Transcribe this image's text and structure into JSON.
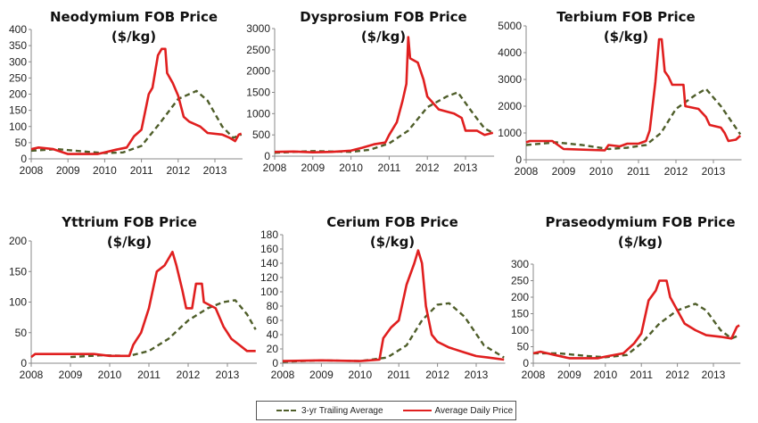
{
  "legend": {
    "trailing_label": "3-yr Trailing Average",
    "daily_label": "Average Daily Price",
    "trailing_color": "#4f5e2a",
    "daily_color": "#e01f1f"
  },
  "chart_data": [
    {
      "type": "line",
      "title": "Neodymium FOB Price",
      "subtitle": "($/kg)",
      "xlim": [
        2008,
        2013.75
      ],
      "ylim": [
        0,
        400
      ],
      "xticks": [
        2008,
        2009,
        2010,
        2011,
        2012,
        2013
      ],
      "yticks": [
        0,
        50,
        100,
        150,
        200,
        250,
        300,
        350,
        400
      ],
      "series": [
        {
          "name": "Average Daily Price",
          "x": [
            2008,
            2008.2,
            2008.6,
            2009,
            2009.8,
            2010,
            2010.3,
            2010.6,
            2010.8,
            2011,
            2011.2,
            2011.3,
            2011.45,
            2011.55,
            2011.65,
            2011.7,
            2011.85,
            2012,
            2012.15,
            2012.3,
            2012.6,
            2012.8,
            2013.2,
            2013.4,
            2013.55,
            2013.65,
            2013.72
          ],
          "y": [
            30,
            35,
            30,
            15,
            15,
            20,
            28,
            35,
            70,
            90,
            200,
            220,
            320,
            340,
            340,
            265,
            235,
            195,
            130,
            115,
            100,
            80,
            75,
            65,
            55,
            75,
            78
          ]
        },
        {
          "name": "3-yr Trailing Average",
          "x": [
            2008,
            2008.7,
            2009.5,
            2010,
            2010.5,
            2011,
            2011.5,
            2012,
            2012.5,
            2012.8,
            2013.2,
            2013.5,
            2013.72
          ],
          "y": [
            25,
            30,
            22,
            18,
            20,
            40,
            110,
            185,
            210,
            180,
            100,
            65,
            75
          ]
        }
      ]
    },
    {
      "type": "line",
      "title": "Dysprosium FOB Price",
      "subtitle": "($/kg)",
      "xlim": [
        2008,
        2013.75
      ],
      "ylim": [
        0,
        3000
      ],
      "xticks": [
        2008,
        2009,
        2010,
        2011,
        2012,
        2013
      ],
      "yticks": [
        0,
        500,
        1000,
        1500,
        2000,
        2500,
        3000
      ],
      "series": [
        {
          "name": "Average Daily Price",
          "x": [
            2008,
            2008.5,
            2009,
            2009.5,
            2010,
            2010.3,
            2010.6,
            2010.9,
            2011,
            2011.2,
            2011.35,
            2011.45,
            2011.5,
            2011.55,
            2011.75,
            2011.9,
            2012,
            2012.3,
            2012.7,
            2012.9,
            2013,
            2013.3,
            2013.5,
            2013.72
          ],
          "y": [
            100,
            110,
            90,
            100,
            130,
            200,
            280,
            320,
            500,
            800,
            1300,
            1700,
            2800,
            2300,
            2200,
            1800,
            1400,
            1100,
            1000,
            900,
            600,
            600,
            500,
            550
          ]
        },
        {
          "name": "3-yr Trailing Average",
          "x": [
            2008,
            2009,
            2010,
            2010.5,
            2011,
            2011.5,
            2012,
            2012.5,
            2012.8,
            2013.2,
            2013.5,
            2013.72
          ],
          "y": [
            80,
            120,
            100,
            150,
            300,
            600,
            1150,
            1400,
            1500,
            1000,
            650,
            550
          ]
        }
      ]
    },
    {
      "type": "line",
      "title": "Terbium FOB Price",
      "subtitle": "($/kg)",
      "xlim": [
        2008,
        2013.75
      ],
      "ylim": [
        0,
        5000
      ],
      "xticks": [
        2008,
        2009,
        2010,
        2011,
        2012,
        2013
      ],
      "yticks": [
        0,
        1000,
        2000,
        3000,
        4000,
        5000
      ],
      "series": [
        {
          "name": "Average Daily Price",
          "x": [
            2008,
            2008.1,
            2008.7,
            2009,
            2010.1,
            2010.2,
            2010.5,
            2010.7,
            2011,
            2011.2,
            2011.3,
            2011.45,
            2011.55,
            2011.62,
            2011.7,
            2011.8,
            2011.9,
            2012.2,
            2012.25,
            2012.6,
            2012.8,
            2012.9,
            2013.2,
            2013.3,
            2013.4,
            2013.6,
            2013.72
          ],
          "y": [
            650,
            700,
            700,
            400,
            350,
            550,
            500,
            600,
            600,
            700,
            1100,
            2900,
            4500,
            4500,
            3300,
            3100,
            2800,
            2800,
            2000,
            1900,
            1600,
            1300,
            1200,
            1000,
            700,
            750,
            900
          ]
        },
        {
          "name": "3-yr Trailing Average",
          "x": [
            2008,
            2008.8,
            2009.5,
            2010.2,
            2010.7,
            2011.2,
            2011.6,
            2012,
            2012.5,
            2012.8,
            2013.2,
            2013.72
          ],
          "y": [
            550,
            650,
            550,
            400,
            450,
            550,
            1000,
            1900,
            2400,
            2650,
            2000,
            950
          ]
        }
      ]
    },
    {
      "type": "line",
      "title": "Yttrium FOB Price",
      "subtitle": "($/kg)",
      "xlim": [
        2008,
        2013.75
      ],
      "ylim": [
        0,
        200
      ],
      "xticks": [
        2008,
        2009,
        2010,
        2011,
        2012,
        2013
      ],
      "yticks": [
        0,
        50,
        100,
        150,
        200
      ],
      "series": [
        {
          "name": "Average Daily Price",
          "x": [
            2008,
            2008.1,
            2009.6,
            2010,
            2010.5,
            2010.6,
            2010.8,
            2011,
            2011.2,
            2011.4,
            2011.6,
            2011.7,
            2011.85,
            2011.95,
            2012.1,
            2012.2,
            2012.35,
            2012.4,
            2012.7,
            2012.9,
            2013.1,
            2013.3,
            2013.5,
            2013.72
          ],
          "y": [
            10,
            15,
            15,
            12,
            12,
            30,
            50,
            90,
            150,
            160,
            182,
            160,
            120,
            90,
            90,
            130,
            130,
            100,
            90,
            60,
            40,
            30,
            20,
            20
          ]
        },
        {
          "name": "3-yr Trailing Average",
          "x": [
            2009,
            2009.8,
            2010.5,
            2011,
            2011.5,
            2012,
            2012.5,
            2012.9,
            2013.2,
            2013.5,
            2013.72
          ],
          "y": [
            10,
            13,
            12,
            20,
            40,
            70,
            90,
            100,
            103,
            80,
            55
          ]
        }
      ]
    },
    {
      "type": "line",
      "title": "Cerium FOB Price",
      "subtitle": "($/kg)",
      "xlim": [
        2008,
        2013.75
      ],
      "ylim": [
        0,
        180
      ],
      "xticks": [
        2008,
        2009,
        2010,
        2011,
        2012,
        2013
      ],
      "yticks": [
        0,
        20,
        40,
        60,
        80,
        100,
        120,
        140,
        160,
        180
      ],
      "series": [
        {
          "name": "Average Daily Price",
          "x": [
            2008,
            2009,
            2010,
            2010.5,
            2010.6,
            2010.8,
            2011,
            2011.2,
            2011.4,
            2011.5,
            2011.6,
            2011.7,
            2011.85,
            2012,
            2012.3,
            2012.7,
            2013,
            2013.3,
            2013.72
          ],
          "y": [
            3,
            4,
            3,
            5,
            35,
            50,
            60,
            110,
            140,
            158,
            140,
            80,
            40,
            30,
            22,
            15,
            10,
            8,
            5
          ]
        },
        {
          "name": "3-yr Trailing Average",
          "x": [
            2008,
            2009,
            2010,
            2010.7,
            2011.2,
            2011.6,
            2012,
            2012.3,
            2012.7,
            2013.2,
            2013.72
          ],
          "y": [
            2,
            4,
            3,
            8,
            25,
            60,
            82,
            84,
            65,
            25,
            8
          ]
        }
      ]
    },
    {
      "type": "line",
      "title": "Praseodymium FOB Price",
      "subtitle": "($/kg)",
      "xlim": [
        2008,
        2013.75
      ],
      "ylim": [
        0,
        300
      ],
      "xticks": [
        2008,
        2009,
        2010,
        2011,
        2012,
        2013
      ],
      "yticks": [
        0,
        50,
        100,
        150,
        200,
        250,
        300
      ],
      "series": [
        {
          "name": "Average Daily Price",
          "x": [
            2008,
            2008.2,
            2008.6,
            2009,
            2009.8,
            2010,
            2010.5,
            2010.8,
            2011,
            2011.2,
            2011.4,
            2011.5,
            2011.7,
            2011.8,
            2012,
            2012.2,
            2012.5,
            2012.8,
            2013.2,
            2013.5,
            2013.65,
            2013.72
          ],
          "y": [
            30,
            35,
            25,
            15,
            15,
            20,
            30,
            60,
            90,
            190,
            220,
            250,
            250,
            200,
            160,
            120,
            100,
            85,
            80,
            75,
            110,
            115
          ]
        },
        {
          "name": "3-yr Trailing Average",
          "x": [
            2008,
            2008.7,
            2009.5,
            2010,
            2010.6,
            2011,
            2011.5,
            2012,
            2012.5,
            2012.8,
            2013.2,
            2013.5,
            2013.72
          ],
          "y": [
            30,
            30,
            22,
            18,
            25,
            60,
            120,
            160,
            180,
            160,
            100,
            75,
            85
          ]
        }
      ]
    }
  ]
}
